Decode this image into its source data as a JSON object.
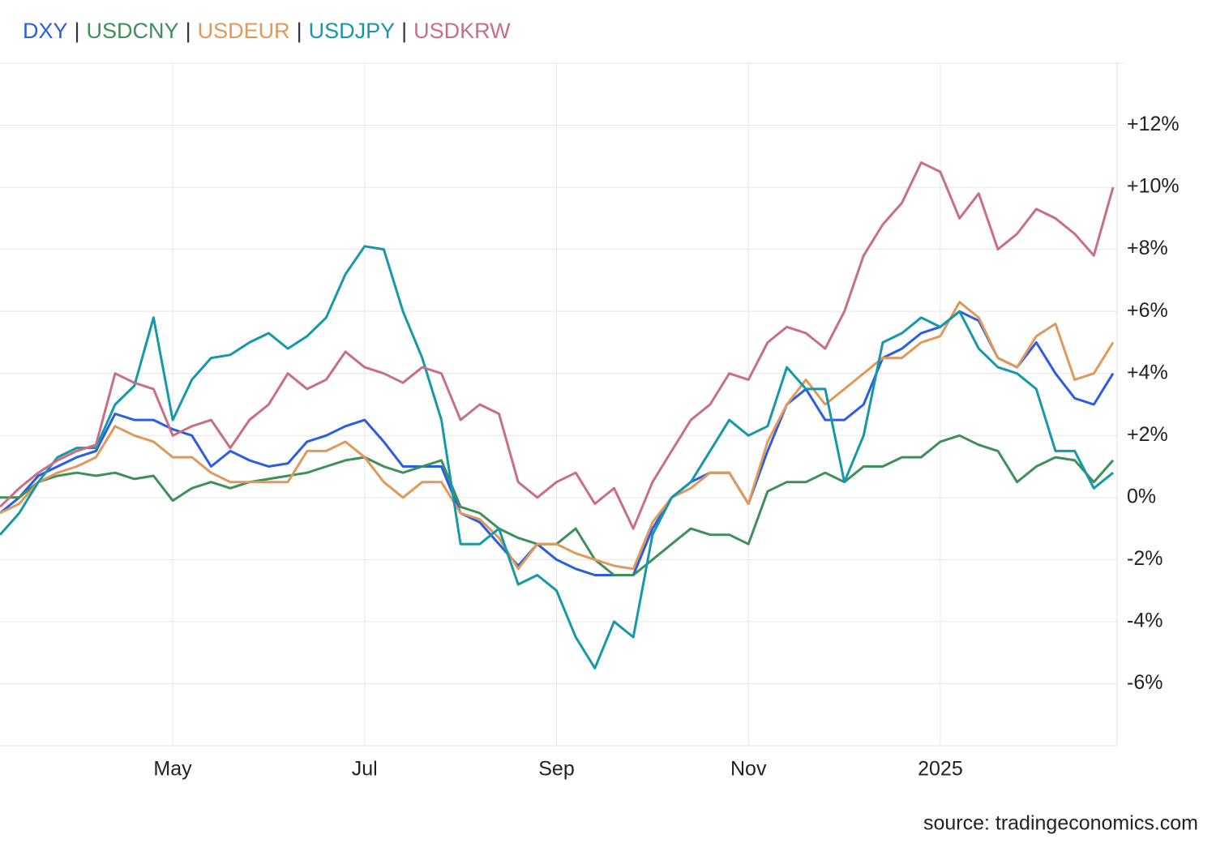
{
  "chart_data": {
    "type": "line",
    "legend_separator": "|",
    "source": "source: tradingeconomics.com",
    "categories": [
      null,
      null,
      null,
      null,
      null,
      null,
      null,
      null,
      null,
      "May",
      null,
      null,
      null,
      null,
      null,
      null,
      null,
      null,
      null,
      "Jul",
      null,
      null,
      null,
      null,
      null,
      null,
      null,
      null,
      null,
      "Sep",
      null,
      null,
      null,
      null,
      null,
      null,
      null,
      null,
      null,
      "Nov",
      null,
      null,
      null,
      null,
      null,
      null,
      null,
      null,
      null,
      "2025",
      null,
      null,
      null,
      null,
      null,
      null,
      null,
      null,
      null
    ],
    "series": [
      {
        "name": "DXY",
        "color": "#2b5ce6",
        "values": [
          -0.5,
          0,
          0.7,
          1.0,
          1.3,
          1.5,
          2.7,
          2.5,
          2.5,
          2.2,
          2.0,
          1.0,
          1.5,
          1.2,
          1.0,
          1.1,
          1.8,
          2.0,
          2.3,
          2.5,
          1.8,
          1.0,
          1.0,
          1.0,
          -0.5,
          -0.8,
          -1.5,
          -2.2,
          -1.5,
          -2.0,
          -2.3,
          -2.5,
          -2.5,
          -2.5,
          -1.0,
          0,
          0.5,
          0.8,
          0.8,
          -0.2,
          1.5,
          3.0,
          3.5,
          2.5,
          2.5,
          3.0,
          4.5,
          4.8,
          5.3,
          5.5,
          6.0,
          5.7,
          4.5,
          4.2,
          5.0,
          4.0,
          3.2,
          3.0,
          4.0
        ]
      },
      {
        "name": "USDCNY",
        "color": "#3f8f5a",
        "values": [
          0,
          0,
          0.5,
          0.7,
          0.8,
          0.7,
          0.8,
          0.6,
          0.7,
          -0.1,
          0.3,
          0.5,
          0.3,
          0.5,
          0.6,
          0.7,
          0.8,
          1.0,
          1.2,
          1.3,
          1.0,
          0.8,
          1.0,
          1.2,
          -0.3,
          -0.5,
          -1.0,
          -1.3,
          -1.5,
          -1.5,
          -1.0,
          -2.0,
          -2.5,
          -2.5,
          -2.0,
          -1.5,
          -1.0,
          -1.2,
          -1.2,
          -1.5,
          0.2,
          0.5,
          0.5,
          0.8,
          0.5,
          1.0,
          1.0,
          1.3,
          1.3,
          1.8,
          2.0,
          1.7,
          1.5,
          0.5,
          1.0,
          1.3,
          1.2,
          0.5,
          1.2
        ]
      },
      {
        "name": "USDEUR",
        "color": "#e0995a",
        "values": [
          -0.5,
          -0.2,
          0.5,
          0.8,
          1.0,
          1.3,
          2.3,
          2.0,
          1.8,
          1.3,
          1.3,
          0.8,
          0.5,
          0.5,
          0.5,
          0.5,
          1.5,
          1.5,
          1.8,
          1.3,
          0.5,
          0.0,
          0.5,
          0.5,
          -0.5,
          -0.7,
          -1.3,
          -2.3,
          -1.5,
          -1.5,
          -1.8,
          -2.0,
          -2.2,
          -2.3,
          -0.8,
          0.0,
          0.3,
          0.8,
          0.8,
          -0.2,
          1.8,
          3.0,
          3.8,
          3.0,
          3.5,
          4.0,
          4.5,
          4.5,
          5.0,
          5.2,
          6.3,
          5.8,
          4.5,
          4.2,
          5.2,
          5.6,
          3.8,
          4.0,
          5.0
        ]
      },
      {
        "name": "USDJPY",
        "color": "#1598a8",
        "values": [
          -1.2,
          -0.5,
          0.5,
          1.3,
          1.6,
          1.6,
          3.0,
          3.6,
          5.8,
          2.5,
          3.8,
          4.5,
          4.6,
          5.0,
          5.3,
          4.8,
          5.2,
          5.8,
          7.2,
          8.1,
          8.0,
          6.0,
          4.5,
          2.5,
          -1.5,
          -1.5,
          -1.0,
          -2.8,
          -2.5,
          -3.0,
          -4.5,
          -5.5,
          -4.0,
          -4.5,
          -1.2,
          0,
          0.5,
          1.5,
          2.5,
          2.0,
          2.3,
          4.2,
          3.5,
          3.5,
          0.5,
          2.0,
          5.0,
          5.3,
          5.8,
          5.5,
          6.0,
          4.8,
          4.2,
          4.0,
          3.5,
          1.5,
          1.5,
          0.3,
          0.8
        ]
      },
      {
        "name": "USDKRW",
        "color": "#c96f84",
        "values": [
          -0.3,
          0.3,
          0.8,
          1.2,
          1.5,
          1.7,
          4.0,
          3.7,
          3.5,
          2.0,
          2.3,
          2.5,
          1.6,
          2.5,
          3.0,
          4.0,
          3.5,
          3.8,
          4.7,
          4.2,
          4.0,
          3.7,
          4.2,
          4.0,
          2.5,
          3.0,
          2.7,
          0.5,
          0.0,
          0.5,
          0.8,
          -0.2,
          0.3,
          -1.0,
          0.5,
          1.5,
          2.5,
          3.0,
          4.0,
          3.8,
          5.0,
          5.5,
          5.3,
          4.8,
          6.0,
          7.8,
          8.8,
          9.5,
          10.8,
          10.5,
          9.0,
          9.8,
          8.0,
          8.5,
          9.3,
          9.0,
          8.5,
          7.8,
          10.0
        ]
      }
    ],
    "ylim": [
      -8,
      14
    ],
    "yticks": [
      {
        "value": -6,
        "label": "-6%"
      },
      {
        "value": -4,
        "label": "-4%"
      },
      {
        "value": -2,
        "label": "-2%"
      },
      {
        "value": 0,
        "label": "0%"
      },
      {
        "value": 2,
        "label": "+2%"
      },
      {
        "value": 4,
        "label": "+4%"
      },
      {
        "value": 6,
        "label": "+6%"
      },
      {
        "value": 8,
        "label": "+8%"
      },
      {
        "value": 10,
        "label": "+10%"
      },
      {
        "value": 12,
        "label": "+12%"
      }
    ],
    "grid": true
  }
}
